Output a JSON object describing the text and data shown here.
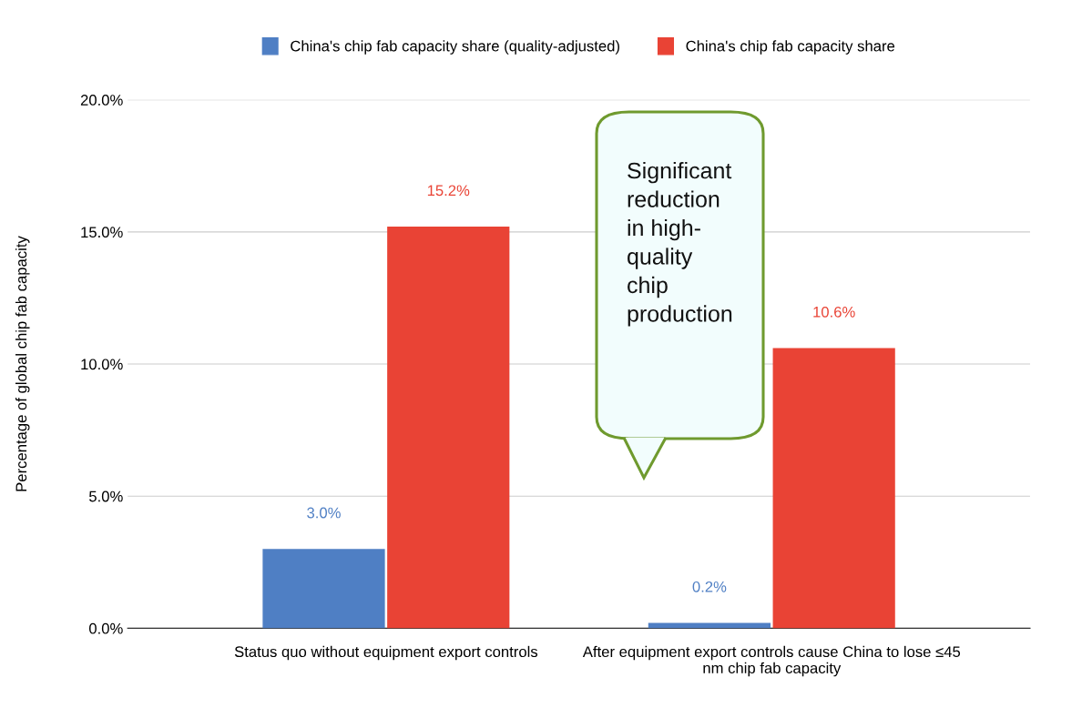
{
  "chart_data": {
    "type": "bar",
    "categories": [
      "Status quo without equipment export controls",
      "After equipment export controls cause China to lose ≤45\nnm chip fab capacity"
    ],
    "series": [
      {
        "name": "China's chip fab capacity share (quality-adjusted)",
        "color": "#4f7fc4",
        "values": [
          3.0,
          0.2
        ],
        "value_labels": [
          "3.0%",
          "0.2%"
        ]
      },
      {
        "name": "China's chip fab capacity share",
        "color": "#e94335",
        "values": [
          15.2,
          10.6
        ],
        "value_labels": [
          "15.2%",
          "10.6%"
        ]
      }
    ],
    "ylabel": "Percentage of global chip fab capacity",
    "ylim": [
      0,
      20
    ],
    "yticks": [
      {
        "value": 0,
        "label": "0.0%"
      },
      {
        "value": 5,
        "label": "5.0%"
      },
      {
        "value": 10,
        "label": "10.0%"
      },
      {
        "value": 15,
        "label": "15.0%"
      },
      {
        "value": 20,
        "label": "20.0%"
      }
    ],
    "grid": "y",
    "legend": "top",
    "annotations": [
      "Significant\nreduction\nin high-\nquality\nchip\nproduction"
    ]
  }
}
